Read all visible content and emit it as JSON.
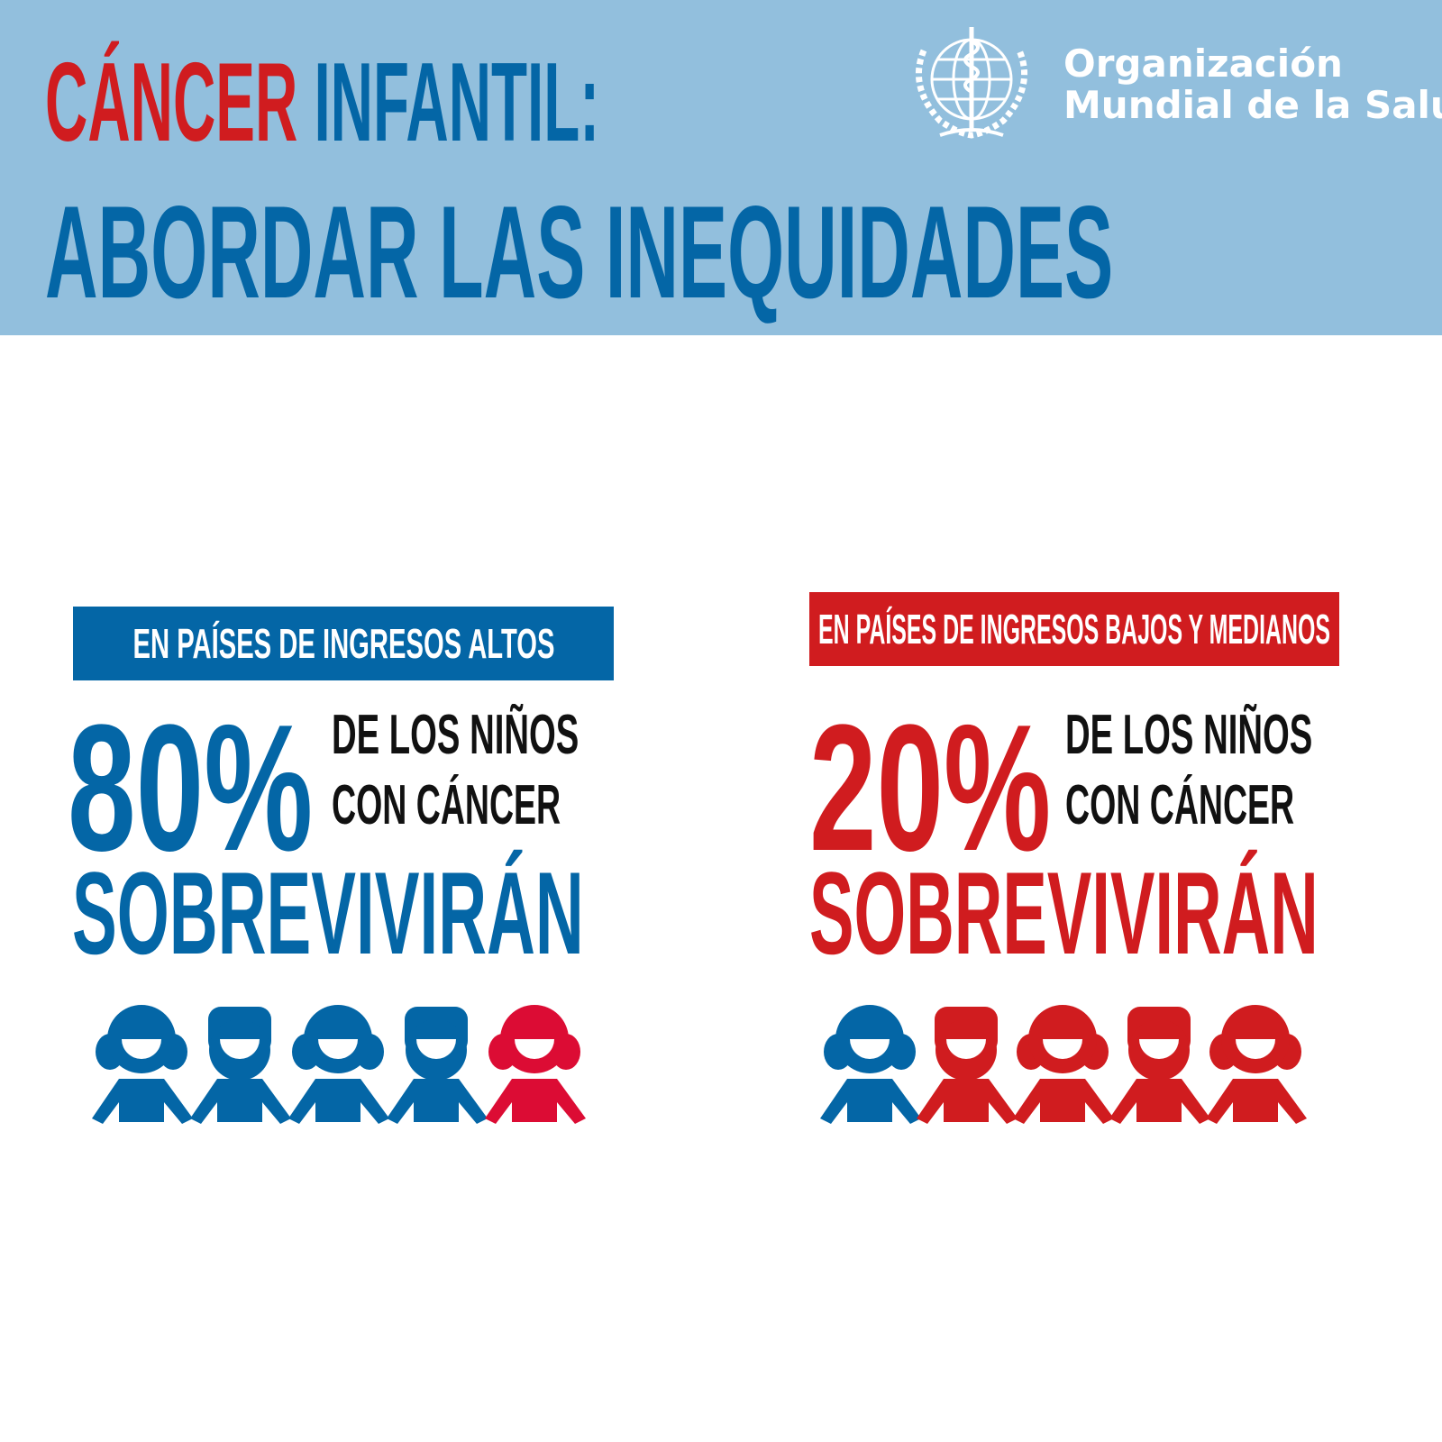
{
  "header": {
    "title_part1": "CÁNCER",
    "title_part2": "INFANTIL:",
    "subtitle": "ABORDAR LAS INEQUIDADES",
    "logo_line1": "Organización",
    "logo_line2": "Mundial de la Salud"
  },
  "left": {
    "banner": "EN PAÍSES DE INGRESOS ALTOS",
    "percent": "80%",
    "line1": "DE LOS NIÑOS",
    "line2": "CON CÁNCER",
    "verb": "SOBREVIVIRÁN",
    "survival_fraction": 0.8
  },
  "right": {
    "banner": "EN PAÍSES DE INGRESOS BAJOS Y MEDIANOS",
    "percent": "20%",
    "line1": "DE LOS NIÑOS",
    "line2": "CON CÁNCER",
    "verb": "SOBREVIVIRÁN",
    "survival_fraction": 0.2
  },
  "colors": {
    "blue": "#0466a6",
    "red": "#d01c1f",
    "header_bg": "#92bfdd",
    "kid_red": "#dc0c34"
  }
}
